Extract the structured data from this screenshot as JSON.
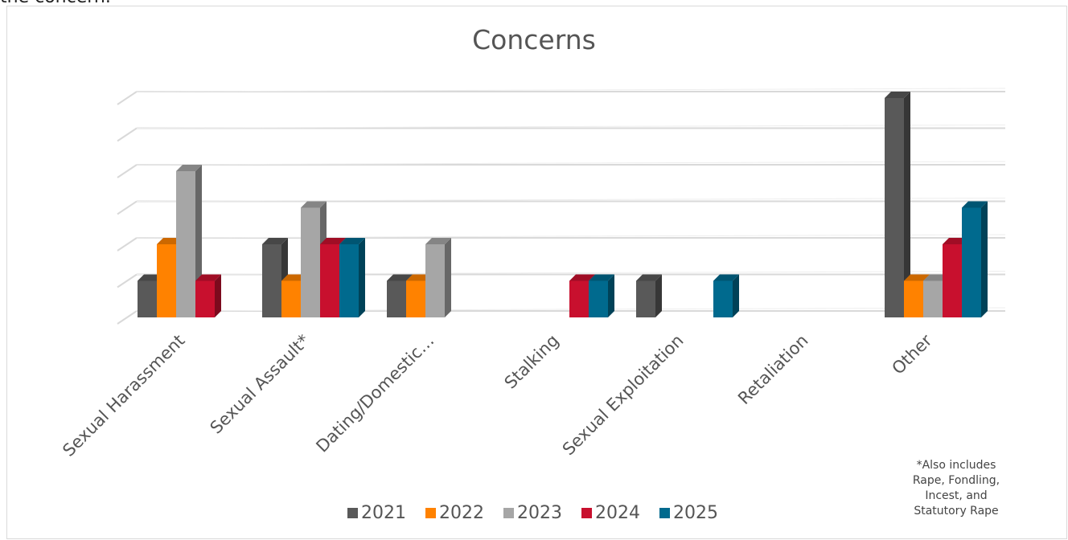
{
  "top_text": "the concern.",
  "chart_data": {
    "type": "bar",
    "title": "Concerns",
    "categories": [
      "Sexual Harassment",
      "Sexual Assault*",
      "Dating/Domestic…",
      "Stalking",
      "Sexual Exploitation",
      "Retaliation",
      "Other"
    ],
    "series": [
      {
        "name": "2021",
        "color": "#595959",
        "values": [
          1,
          2,
          1,
          0,
          1,
          0,
          6
        ]
      },
      {
        "name": "2022",
        "color": "#ff8200",
        "values": [
          2,
          1,
          1,
          0,
          0,
          0,
          1
        ]
      },
      {
        "name": "2023",
        "color": "#a6a6a6",
        "values": [
          4,
          3,
          2,
          0,
          0,
          0,
          1
        ]
      },
      {
        "name": "2024",
        "color": "#c8102e",
        "values": [
          1,
          2,
          0,
          1,
          0,
          0,
          2
        ]
      },
      {
        "name": "2025",
        "color": "#006a8e",
        "values": [
          0,
          2,
          0,
          1,
          1,
          0,
          3
        ]
      }
    ],
    "ylim": [
      0,
      6
    ],
    "grid": true,
    "legend": "bottom",
    "style": "3d-column"
  },
  "footnote": [
    "*Also includes",
    "Rape, Fondling,",
    "Incest, and",
    "Statutory Rape"
  ]
}
